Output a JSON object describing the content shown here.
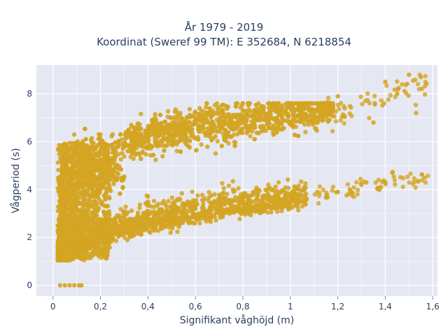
{
  "chart_data": {
    "type": "scatter",
    "title": "År 1979 - 2019",
    "subtitle": "Koordinat (Sweref 99 TM): E 352684, N 6218854",
    "xlabel": "Signifikant våghöjd (m)",
    "ylabel": "Vågperiod (s)",
    "xlim": [
      -0.07,
      1.62
    ],
    "ylim": [
      -0.45,
      9.2
    ],
    "x_ticks": [
      0,
      0.2,
      0.4,
      0.6,
      0.8,
      1,
      1.2,
      1.4,
      1.6
    ],
    "x_tick_labels": [
      "0",
      "0,2",
      "0,4",
      "0,6",
      "0,8",
      "1",
      "1,2",
      "1,4",
      "1,6"
    ],
    "y_ticks": [
      0,
      2,
      4,
      6,
      8
    ],
    "y_tick_labels": [
      "0",
      "2",
      "4",
      "6",
      "8"
    ],
    "grid": true,
    "marker_color": "#d4a422",
    "plot_bgcolor": "#e5e8f2",
    "series": [
      {
        "values": [
          [
            0.03,
            0
          ],
          [
            0.05,
            0
          ],
          [
            0.07,
            0
          ],
          [
            0.09,
            0
          ],
          [
            0.11,
            0
          ],
          [
            0.12,
            0
          ],
          [
            0.02,
            1.6
          ],
          [
            0.04,
            1.8
          ],
          [
            0.05,
            1.2
          ],
          [
            0.08,
            1.1
          ],
          [
            0.12,
            1.1
          ],
          [
            0.06,
            3.2
          ],
          [
            0.05,
            5.9
          ],
          [
            0.09,
            6.3
          ],
          [
            0.12,
            4.8
          ],
          [
            0.2,
            2.0
          ],
          [
            0.3,
            2.6
          ],
          [
            0.4,
            3.0
          ],
          [
            0.6,
            3.2
          ],
          [
            0.8,
            3.5
          ],
          [
            1.0,
            3.7
          ],
          [
            1.2,
            3.9
          ],
          [
            1.3,
            4.2
          ],
          [
            0.2,
            6.3
          ],
          [
            0.4,
            6.6
          ],
          [
            0.6,
            7.0
          ],
          [
            0.8,
            7.3
          ],
          [
            1.0,
            7.6
          ],
          [
            1.2,
            7.9
          ],
          [
            1.4,
            8.5
          ],
          [
            1.5,
            8.8
          ],
          [
            1.55,
            8.7
          ],
          [
            1.53,
            7.2
          ],
          [
            1.45,
            8.0
          ],
          [
            1.43,
            4.7
          ],
          [
            1.4,
            4.3
          ],
          [
            1.32,
            4.3
          ],
          [
            1.35,
            6.8
          ]
        ]
      }
    ]
  }
}
